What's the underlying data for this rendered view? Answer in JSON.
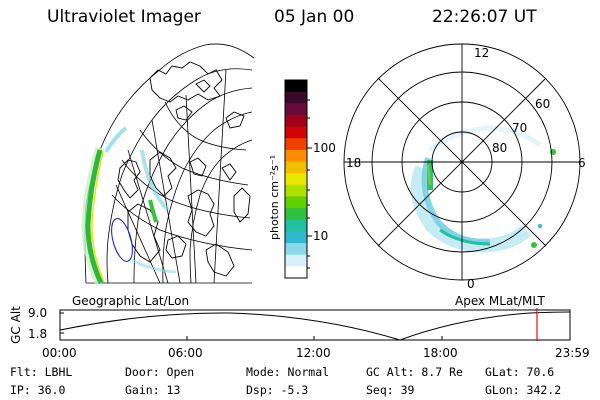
{
  "header": {
    "instrument": "Ultraviolet Imager",
    "date": "05 Jan 00",
    "time": "22:26:07 UT"
  },
  "colorbar": {
    "unit_label": "photon cm⁻²s⁻¹",
    "ticks": [
      "100",
      "10"
    ],
    "colors": [
      "#000000",
      "#3a0a2a",
      "#6a0a3a",
      "#a00018",
      "#d4000a",
      "#f04000",
      "#ff8c00",
      "#f0c000",
      "#e8e800",
      "#b0e000",
      "#60d000",
      "#30c040",
      "#20c0a0",
      "#30b8d0",
      "#8ad8e8",
      "#d8f0f8",
      "#ffffff"
    ]
  },
  "left_map": {
    "label": "Geographic Lat/Lon",
    "aurora_color": "#34c43c"
  },
  "polar_plot": {
    "label": "Apex MLat/MLT",
    "mlt_labels": {
      "top": "12",
      "left": "18",
      "right": "6",
      "bottom": "0"
    },
    "lat_labels": [
      "60",
      "70",
      "80"
    ]
  },
  "altitude_plot": {
    "axis_title": "GC Alt",
    "y_ticks": [
      "9.0",
      "1.8"
    ],
    "x_ticks": [
      "00:00",
      "06:00",
      "12:00",
      "18:00",
      "23:59"
    ],
    "marker_color": "#e01010"
  },
  "status": {
    "filter": "Flt: LBHL",
    "ip": "IP: 36.0",
    "door": "Door: Open",
    "gain": "Gain: 13",
    "mode": "Mode: Normal",
    "dsp": "Dsp:   -5.3",
    "gc_alt": "GC Alt: 8.7 Re",
    "seq": "Seq: 39",
    "glat": "GLat:  70.6",
    "glon": "GLon: 342.2"
  }
}
